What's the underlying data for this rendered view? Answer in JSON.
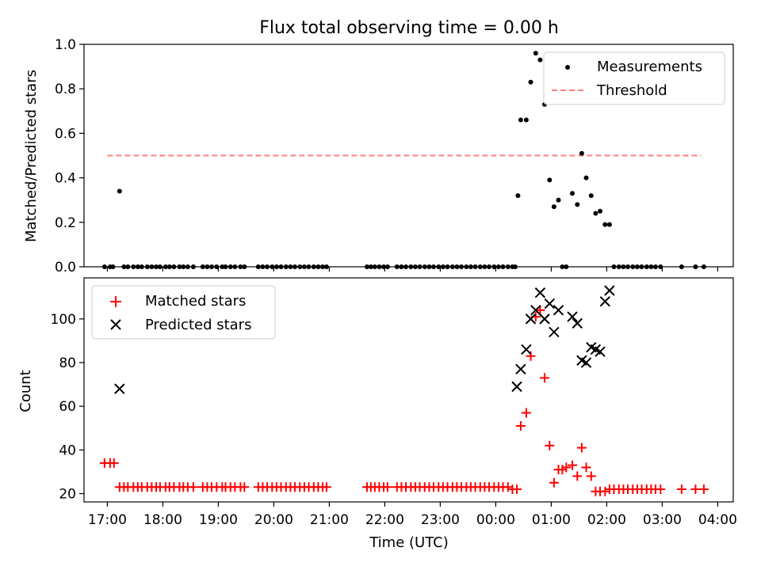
{
  "title": "Flux total observing time = 0.00 h",
  "chart_data": [
    {
      "type": "scatter",
      "ylabel": "Matched/Predicted stars",
      "ylim": [
        0,
        1.0
      ],
      "xlim_hours": [
        16.58,
        28.28
      ],
      "y_ticks": [
        "0.0",
        "0.2",
        "0.4",
        "0.6",
        "0.8",
        "1.0"
      ],
      "legend_position": "top-right",
      "series": [
        {
          "name": "Measurements",
          "marker": "dot",
          "color": "#000000",
          "x": [
            16.95,
            17.05,
            17.1,
            17.22,
            17.3,
            17.37,
            17.47,
            17.55,
            17.62,
            17.72,
            17.8,
            17.88,
            17.95,
            18.05,
            18.12,
            18.2,
            18.3,
            18.37,
            18.45,
            18.55,
            18.72,
            18.8,
            18.88,
            18.97,
            19.07,
            19.13,
            19.22,
            19.3,
            19.4,
            19.47,
            19.72,
            19.8,
            19.88,
            19.97,
            20.05,
            20.13,
            20.22,
            20.3,
            20.38,
            20.47,
            20.55,
            20.63,
            20.72,
            20.8,
            20.88,
            20.95,
            21.68,
            21.75,
            21.82,
            21.9,
            21.98,
            22.05,
            22.22,
            22.3,
            22.38,
            22.47,
            22.55,
            22.63,
            22.72,
            22.8,
            22.88,
            22.97,
            23.05,
            23.13,
            23.22,
            23.3,
            23.38,
            23.47,
            23.55,
            23.63,
            23.72,
            23.8,
            23.88,
            23.97,
            24.05,
            24.13,
            24.22,
            24.3,
            24.35,
            24.4,
            24.45,
            24.55,
            24.63,
            24.72,
            24.8,
            24.88,
            24.97,
            25.05,
            25.13,
            25.2,
            25.27,
            25.38,
            25.47,
            25.55,
            25.63,
            25.72,
            25.8,
            25.88,
            25.97,
            26.05,
            26.13,
            26.22,
            26.3,
            26.38,
            26.47,
            26.55,
            26.63,
            26.72,
            26.8,
            26.88,
            26.97,
            27.35,
            27.6,
            27.75
          ],
          "y": [
            0,
            0,
            0,
            0.34,
            0,
            0,
            0,
            0,
            0,
            0,
            0,
            0,
            0,
            0,
            0,
            0,
            0,
            0,
            0,
            0,
            0,
            0,
            0,
            0,
            0,
            0,
            0,
            0,
            0,
            0,
            0,
            0,
            0,
            0,
            0,
            0,
            0,
            0,
            0,
            0,
            0,
            0,
            0,
            0,
            0,
            0,
            0,
            0,
            0,
            0,
            0,
            0,
            0,
            0,
            0,
            0,
            0,
            0,
            0,
            0,
            0,
            0,
            0,
            0,
            0,
            0,
            0,
            0,
            0,
            0,
            0,
            0,
            0,
            0,
            0,
            0,
            0,
            0,
            0,
            0.32,
            0.66,
            0.66,
            0.83,
            0.96,
            0.93,
            0.73,
            0.39,
            0.27,
            0.3,
            0,
            0,
            0.33,
            0.28,
            0.51,
            0.4,
            0.32,
            0.24,
            0.25,
            0.19,
            0.19,
            0,
            0,
            0,
            0,
            0,
            0,
            0,
            0,
            0,
            0,
            0,
            0,
            0,
            0
          ]
        },
        {
          "name": "Threshold",
          "line_style": "dashed",
          "color": "#ff7f7f",
          "x": [
            17.0,
            27.7
          ],
          "y": [
            0.5,
            0.5
          ]
        }
      ]
    },
    {
      "type": "scatter",
      "xlabel": "Time (UTC)",
      "ylabel": "Count",
      "ylim": [
        16.2,
        118.8
      ],
      "xlim_hours": [
        16.58,
        28.28
      ],
      "y_ticks": [
        "20",
        "40",
        "60",
        "80",
        "100"
      ],
      "x_tick_labels": [
        "17:00",
        "18:00",
        "19:00",
        "20:00",
        "21:00",
        "22:00",
        "23:00",
        "00:00",
        "01:00",
        "02:00",
        "03:00",
        "04:00"
      ],
      "legend_position": "top-left",
      "series": [
        {
          "name": "Matched stars",
          "marker": "plus",
          "color": "#ff0000",
          "x": [
            16.95,
            17.05,
            17.12,
            17.22,
            17.3,
            17.37,
            17.47,
            17.55,
            17.62,
            17.72,
            17.8,
            17.88,
            17.95,
            18.05,
            18.12,
            18.2,
            18.3,
            18.37,
            18.45,
            18.55,
            18.72,
            18.8,
            18.88,
            18.97,
            19.07,
            19.13,
            19.22,
            19.3,
            19.4,
            19.47,
            19.72,
            19.8,
            19.88,
            19.97,
            20.05,
            20.13,
            20.22,
            20.3,
            20.38,
            20.47,
            20.55,
            20.63,
            20.72,
            20.8,
            20.88,
            20.95,
            21.68,
            21.75,
            21.82,
            21.9,
            21.98,
            22.05,
            22.22,
            22.3,
            22.38,
            22.47,
            22.55,
            22.63,
            22.72,
            22.8,
            22.88,
            22.97,
            23.05,
            23.13,
            23.22,
            23.3,
            23.38,
            23.47,
            23.55,
            23.63,
            23.72,
            23.8,
            23.88,
            23.97,
            24.05,
            24.13,
            24.22,
            24.3,
            24.38,
            24.45,
            24.55,
            24.63,
            24.72,
            24.8,
            24.88,
            24.97,
            25.05,
            25.13,
            25.2,
            25.27,
            25.38,
            25.47,
            25.55,
            25.63,
            25.72,
            25.8,
            25.88,
            25.97,
            26.05,
            26.13,
            26.22,
            26.3,
            26.38,
            26.47,
            26.55,
            26.63,
            26.72,
            26.8,
            26.88,
            26.97,
            27.35,
            27.6,
            27.75
          ],
          "y": [
            34,
            34,
            34,
            23,
            23,
            23,
            23,
            23,
            23,
            23,
            23,
            23,
            23,
            23,
            23,
            23,
            23,
            23,
            23,
            23,
            23,
            23,
            23,
            23,
            23,
            23,
            23,
            23,
            23,
            23,
            23,
            23,
            23,
            23,
            23,
            23,
            23,
            23,
            23,
            23,
            23,
            23,
            23,
            23,
            23,
            23,
            23,
            23,
            23,
            23,
            23,
            23,
            23,
            23,
            23,
            23,
            23,
            23,
            23,
            23,
            23,
            23,
            23,
            23,
            23,
            23,
            23,
            23,
            23,
            23,
            23,
            23,
            23,
            23,
            23,
            23,
            23,
            22,
            22,
            51,
            57,
            83,
            101,
            104,
            73,
            42,
            25,
            31,
            31,
            32,
            33,
            28,
            41,
            32,
            28,
            21,
            21,
            21,
            22,
            22,
            22,
            22,
            22,
            22,
            22,
            22,
            22,
            22,
            22,
            22,
            22,
            22,
            22
          ]
        },
        {
          "name": "Predicted stars",
          "marker": "x",
          "color": "#000000",
          "x": [
            17.22,
            24.38,
            24.45,
            24.55,
            24.63,
            24.72,
            24.8,
            24.88,
            24.97,
            25.05,
            25.13,
            25.38,
            25.47,
            25.55,
            25.63,
            25.72,
            25.8,
            25.88,
            25.97,
            26.05
          ],
          "y": [
            68,
            69,
            77,
            86,
            100,
            104,
            112,
            100,
            107,
            94,
            104,
            101,
            98,
            81,
            80,
            87,
            86,
            85,
            108,
            113
          ]
        }
      ]
    }
  ]
}
